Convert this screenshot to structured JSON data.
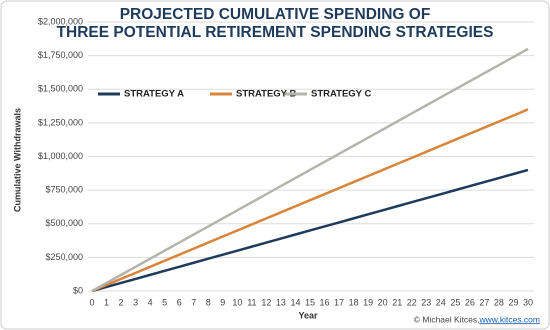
{
  "chart_data": {
    "type": "line",
    "title": [
      "PROJECTED CUMULATIVE SPENDING OF",
      "THREE POTENTIAL RETIREMENT SPENDING STRATEGIES"
    ],
    "x_label": "Year",
    "y_label": "Cumulative Withdrawals",
    "x": [
      0,
      1,
      2,
      3,
      4,
      5,
      6,
      7,
      8,
      9,
      10,
      11,
      12,
      13,
      14,
      15,
      16,
      17,
      18,
      19,
      20,
      21,
      22,
      23,
      24,
      25,
      26,
      27,
      28,
      29,
      30
    ],
    "series": [
      {
        "name": "STRATEGY A",
        "color": "#1f3b5c",
        "values": [
          0,
          30000,
          60000,
          90000,
          120000,
          150000,
          180000,
          210000,
          240000,
          270000,
          300000,
          330000,
          360000,
          390000,
          420000,
          450000,
          480000,
          510000,
          540000,
          570000,
          600000,
          630000,
          660000,
          690000,
          720000,
          750000,
          780000,
          810000,
          840000,
          870000,
          900000
        ]
      },
      {
        "name": "STRATEGY B",
        "color": "#d8843a",
        "values": [
          0,
          45000,
          90000,
          135000,
          180000,
          225000,
          270000,
          315000,
          360000,
          405000,
          450000,
          495000,
          540000,
          585000,
          630000,
          675000,
          720000,
          765000,
          810000,
          855000,
          900000,
          945000,
          990000,
          1035000,
          1080000,
          1125000,
          1170000,
          1215000,
          1260000,
          1305000,
          1350000
        ]
      },
      {
        "name": "STRATEGY C",
        "color": "#b5b5ae",
        "values": [
          0,
          60000,
          120000,
          180000,
          240000,
          300000,
          360000,
          420000,
          480000,
          540000,
          600000,
          660000,
          720000,
          780000,
          840000,
          900000,
          960000,
          1020000,
          1080000,
          1140000,
          1200000,
          1260000,
          1320000,
          1380000,
          1440000,
          1500000,
          1560000,
          1620000,
          1680000,
          1740000,
          1800000
        ]
      }
    ],
    "xlim": [
      0,
      30
    ],
    "xticks": [
      0,
      1,
      2,
      3,
      4,
      5,
      6,
      7,
      8,
      9,
      10,
      11,
      12,
      13,
      14,
      15,
      16,
      17,
      18,
      19,
      20,
      21,
      22,
      23,
      24,
      25,
      26,
      27,
      28,
      29,
      30
    ],
    "ylim": [
      0,
      2000000
    ],
    "yticks": [
      {
        "value": 0,
        "label": "$0"
      },
      {
        "value": 250000,
        "label": "$250,000"
      },
      {
        "value": 500000,
        "label": "$500,000"
      },
      {
        "value": 750000,
        "label": "$750,000"
      },
      {
        "value": 1000000,
        "label": "$1,000,000"
      },
      {
        "value": 1250000,
        "label": "$1,250,000"
      },
      {
        "value": 1500000,
        "label": "$1,500,000"
      },
      {
        "value": 1750000,
        "label": "$1,750,000"
      },
      {
        "value": 2000000,
        "label": "$2,000,000"
      }
    ],
    "grid": true,
    "legend": "top-left",
    "source_prefix": "© Michael Kitces, ",
    "source_link": "www.kitces.com"
  }
}
